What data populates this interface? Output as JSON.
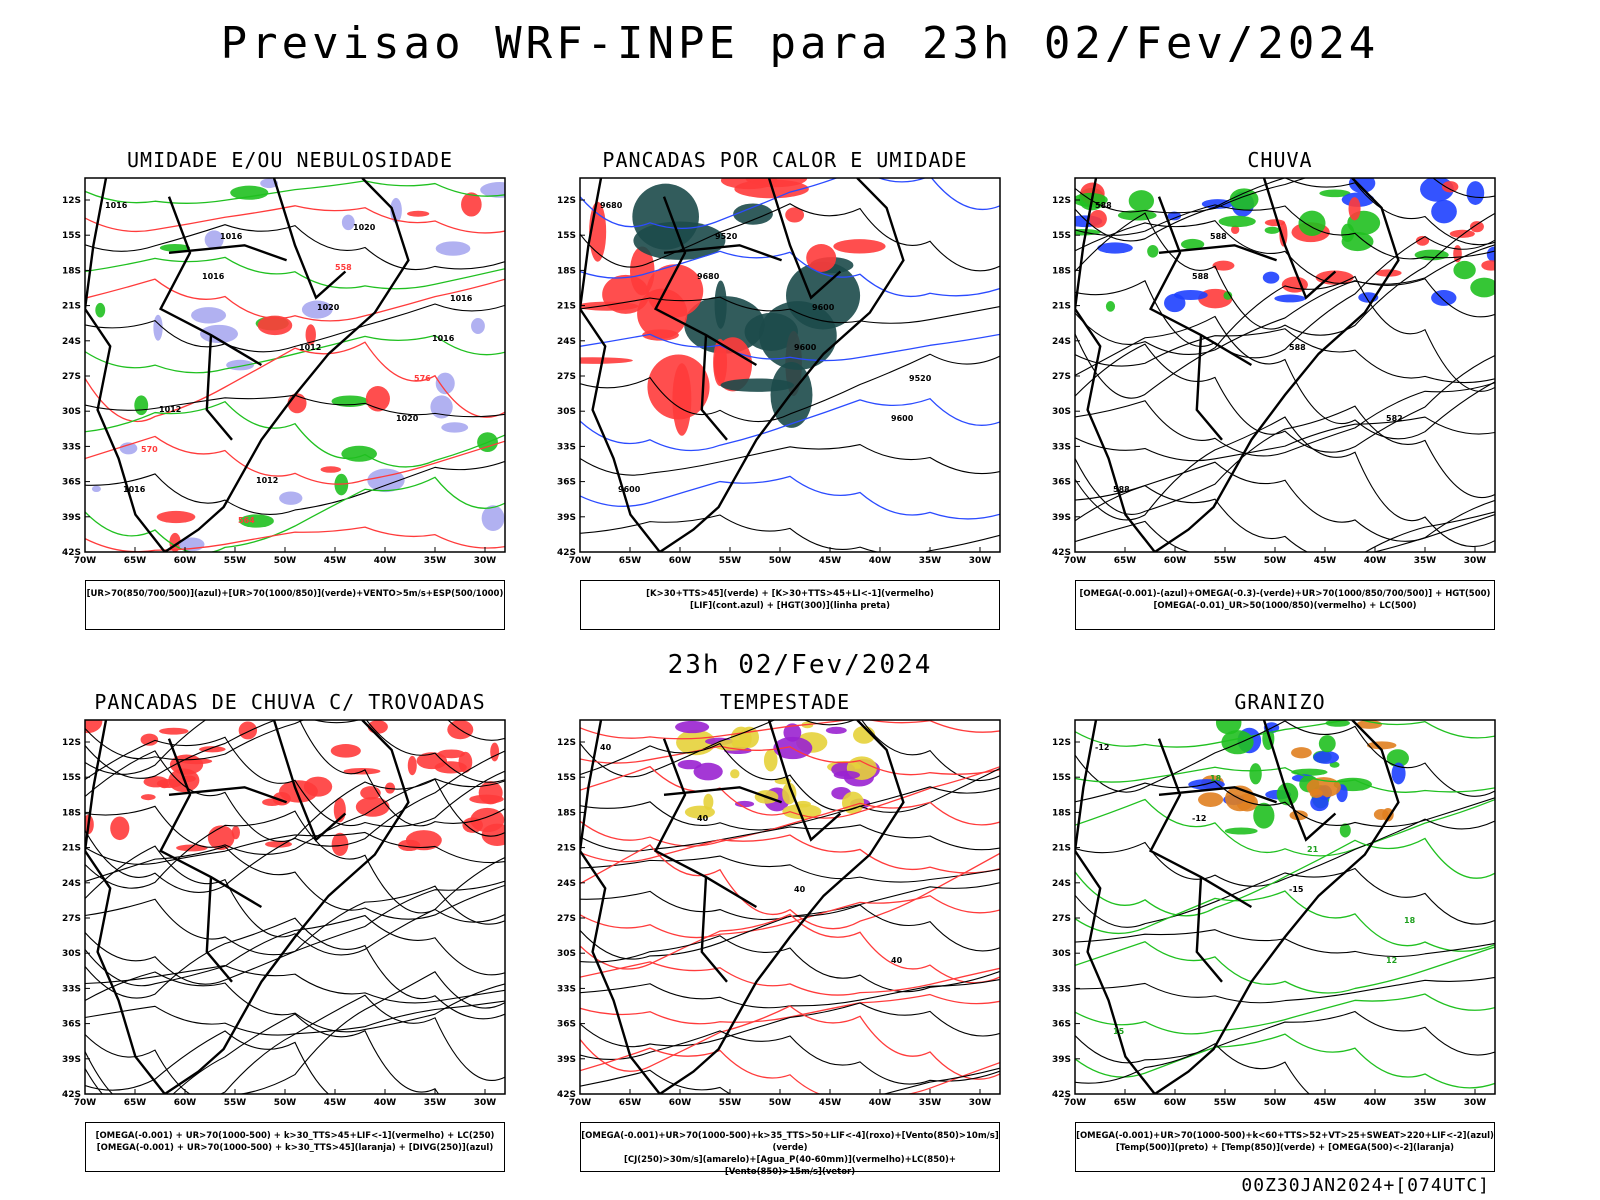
{
  "main_title": "Previsao WRF-INPE  para 23h 02/Fev/2024",
  "mid_title": "23h 02/Fev/2024",
  "footer": "00Z30JAN2024+[074UTC]",
  "lat_labels": [
    "12S",
    "15S",
    "18S",
    "21S",
    "24S",
    "27S",
    "30S",
    "33S",
    "36S",
    "39S",
    "42S"
  ],
  "lon_labels": [
    "70W",
    "65W",
    "60W",
    "55W",
    "50W",
    "45W",
    "40W",
    "35W",
    "30W"
  ],
  "panels": [
    {
      "title": "UMIDADE E/OU NEBULOSIDADE",
      "legend": [
        "[UR>70(850/700/500)](azul)+[UR>70(1000/850)](verde)+VENTO>5m/s+ESP(500/1000)"
      ],
      "contour_labels": [
        "1016",
        "1016",
        "1012",
        "1020",
        "1016",
        "1016",
        "1020",
        "576",
        "570",
        "564",
        "558",
        "1016",
        "1012",
        "1012",
        "1020",
        "1016"
      ]
    },
    {
      "title": "PANCADAS POR CALOR E UMIDADE",
      "legend": [
        "[K>30+TTS>45](verde) + [K>30+TTS>45+LI<-1](vermelho)",
        "[LIF](cont.azul) + [HGT(300)](linha preta)"
      ],
      "contour_labels": [
        "9680",
        "9680",
        "9600",
        "9600",
        "9600",
        "9520",
        "9600",
        "9520"
      ]
    },
    {
      "title": "CHUVA",
      "legend": [
        "[OMEGA(-0.001)-(azul)+OMEGA(-0.3)-(verde)+UR>70(1000/850/700/500)] + HGT(500)",
        "[OMEGA(-0.01)_UR>50(1000/850)(vermelho) + LC(500)"
      ],
      "contour_labels": [
        "588",
        "588",
        "588",
        "582",
        "588",
        "588"
      ]
    },
    {
      "title": "PANCADAS DE CHUVA C/ TROVOADAS",
      "legend": [
        "[OMEGA(-0.001) + UR>70(1000-500) + k>30_TTS>45+LIF<-1](vermelho) + LC(250)",
        "[OMEGA(-0.001) + UR>70(1000-500) + k>30_TTS>45](laranja) + [DIVG(250)](azul)"
      ],
      "contour_labels": []
    },
    {
      "title": "TEMPESTADE",
      "legend": [
        "[OMEGA(-0.001)+UR>70(1000-500)+k>35_TTS>50+LIF<-4](roxo)+[Vento(850)>10m/s](verde)",
        "[CJ(250)>30m/s](amarelo)+[Agua_P(40-60mm)](vermelho)+LC(850)+[Vento(850)>15m/s](vetor)"
      ],
      "contour_labels": [
        "40",
        "40",
        "40",
        "40"
      ]
    },
    {
      "title": "GRANIZO",
      "legend": [
        "[OMEGA(-0.001)+UR>70(1000-500)+k<60+TTS>52+VT>25+SWEAT>220+LIF<-2](azul)",
        "[Temp(500)](preto) + [Temp(850)](verde) + [OMEGA(500)<-2](laranja)"
      ],
      "contour_labels": [
        "-12",
        "-12",
        "-15",
        "12",
        "15",
        "18",
        "21",
        "18"
      ]
    }
  ]
}
